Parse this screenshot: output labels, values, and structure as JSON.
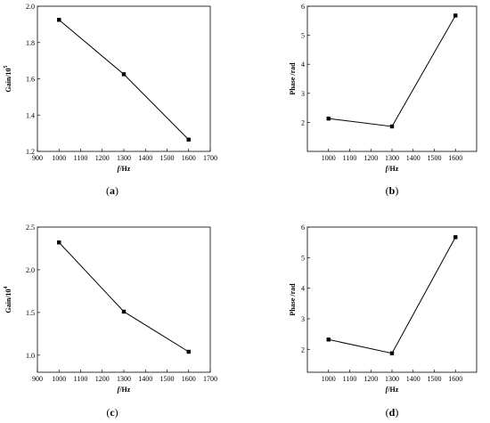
{
  "chart_data": [
    {
      "type": "line",
      "caption_letter": "a",
      "xlabel_italic": "f",
      "xlabel_rest": "/Hz",
      "ylabel": "Gain/10",
      "ylabel_sup": "5",
      "xlim": [
        900,
        1700
      ],
      "ylim": [
        1.2,
        2.0
      ],
      "xticks": [
        "900",
        "1000",
        "1100",
        "1200",
        "1300",
        "1400",
        "1500",
        "1600",
        "1700"
      ],
      "yticks": [
        "1.2",
        "1.4",
        "1.6",
        "1.8",
        "2.0"
      ],
      "series": [
        {
          "x": [
            1000,
            1300,
            1600
          ],
          "y": [
            1.925,
            1.625,
            1.265
          ]
        }
      ]
    },
    {
      "type": "line",
      "caption_letter": "b",
      "xlabel_italic": "f",
      "xlabel_rest": "/Hz",
      "ylabel": "Phase /rad",
      "ylabel_sup": "",
      "xlim": [
        900,
        1700
      ],
      "ylim": [
        1,
        6
      ],
      "xticks": [
        "1000",
        "1100",
        "1200",
        "1300",
        "1400",
        "1500",
        "1600"
      ],
      "yticks": [
        "2",
        "3",
        "4",
        "5",
        "6"
      ],
      "series": [
        {
          "x": [
            1000,
            1300,
            1600
          ],
          "y": [
            2.13,
            1.86,
            5.68
          ]
        }
      ]
    },
    {
      "type": "line",
      "caption_letter": "c",
      "xlabel_italic": "f",
      "xlabel_rest": "/Hz",
      "ylabel": "Gain/10",
      "ylabel_sup": "4",
      "xlim": [
        900,
        1700
      ],
      "ylim": [
        0.8,
        2.5
      ],
      "xticks": [
        "900",
        "1000",
        "1100",
        "1200",
        "1300",
        "1400",
        "1500",
        "1600",
        "1700"
      ],
      "yticks": [
        "1.0",
        "1.5",
        "2.0",
        "2.5"
      ],
      "series": [
        {
          "x": [
            1000,
            1300,
            1600
          ],
          "y": [
            2.32,
            1.51,
            1.04
          ]
        }
      ]
    },
    {
      "type": "line",
      "caption_letter": "d",
      "xlabel_italic": "f",
      "xlabel_rest": "/Hz",
      "ylabel": "Phase /rad",
      "ylabel_sup": "",
      "xlim": [
        900,
        1700
      ],
      "ylim": [
        1.25,
        6
      ],
      "xticks": [
        "1000",
        "1100",
        "1200",
        "1300",
        "1400",
        "1500",
        "1600"
      ],
      "yticks": [
        "2",
        "3",
        "4",
        "5",
        "6"
      ],
      "series": [
        {
          "x": [
            1000,
            1300,
            1600
          ],
          "y": [
            2.32,
            1.87,
            5.67
          ]
        }
      ]
    }
  ]
}
